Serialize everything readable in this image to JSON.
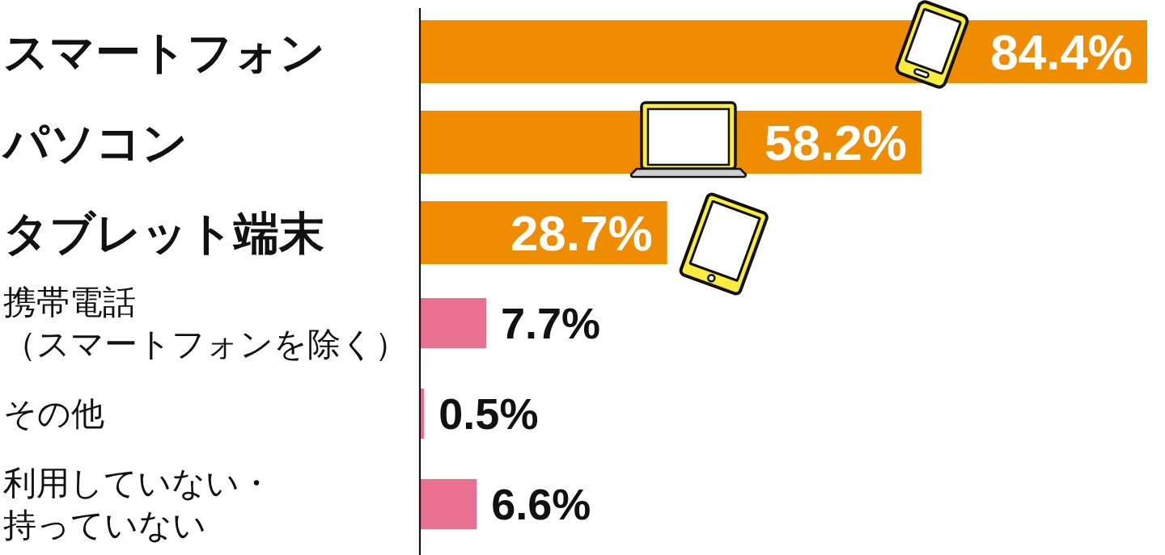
{
  "chart_data": {
    "type": "bar",
    "orientation": "horizontal",
    "categories": [
      "スマートフォン",
      "パソコン",
      "タブレット端末",
      "携帯電話（スマートフォンを除く）",
      "その他",
      "利用していない・持っていない"
    ],
    "values": [
      84.4,
      58.2,
      28.7,
      7.7,
      0.5,
      6.6
    ],
    "colors": [
      "#f08c00",
      "#f08c00",
      "#f08c00",
      "#e97090",
      "#e97090",
      "#e97090"
    ],
    "value_labels": [
      "84.4%",
      "58.2%",
      "28.7%",
      "7.7%",
      "0.5%",
      "6.6%"
    ],
    "xlim": [
      0,
      84.4
    ],
    "tick_labels": "y"
  }
}
